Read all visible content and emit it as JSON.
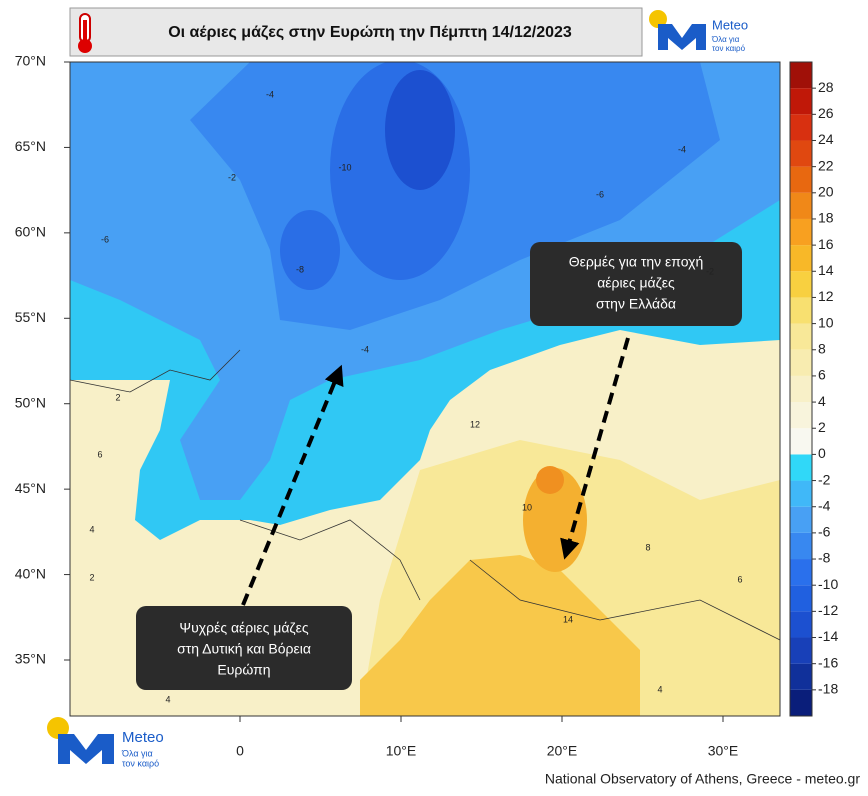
{
  "header": {
    "title": "Οι αέριες μάζες στην Ευρώπη την  Πέμπτη 14/12/2023"
  },
  "logo": {
    "name": "Meteo",
    "tagline": [
      "Όλα για",
      "τον καιρό"
    ]
  },
  "map": {
    "lat_ticks": [
      {
        "value": 70,
        "label": "70°N"
      },
      {
        "value": 65,
        "label": "65°N"
      },
      {
        "value": 60,
        "label": "60°N"
      },
      {
        "value": 55,
        "label": "55°N"
      },
      {
        "value": 50,
        "label": "50°N"
      },
      {
        "value": 45,
        "label": "45°N"
      },
      {
        "value": 40,
        "label": "40°N"
      },
      {
        "value": 35,
        "label": "35°N"
      }
    ],
    "lon_ticks": [
      0,
      {
        "value": 10,
        "label": "10°E"
      },
      {
        "value": 20,
        "label": "20°E"
      },
      {
        "value": 30,
        "label": "30°E"
      }
    ],
    "contour_labels": [
      -2,
      -4,
      -6,
      -8,
      -10,
      -6,
      -4,
      -2,
      -4,
      2,
      6,
      4,
      2,
      4,
      10,
      14,
      8,
      6,
      12,
      4
    ]
  },
  "colorbar": {
    "lim": [
      -20,
      30
    ],
    "ticks": [
      -18,
      -16,
      -14,
      -12,
      -10,
      -8,
      -6,
      -4,
      -2,
      0,
      2,
      4,
      6,
      8,
      10,
      12,
      14,
      16,
      18,
      20,
      22,
      24,
      26,
      28
    ],
    "colors": [
      "#0a1e7a",
      "#10309a",
      "#1840b8",
      "#1c50d0",
      "#2060e0",
      "#2a70ec",
      "#3888f0",
      "#48a0f4",
      "#40b8f8",
      "#30d8f8",
      "#f8f8f0",
      "#f8f4dc",
      "#f8f0c8",
      "#f8ecb0",
      "#f8e898",
      "#f8e070",
      "#f8d040",
      "#f8b828",
      "#f8a020",
      "#f08818",
      "#e86810",
      "#e04810",
      "#d83010",
      "#c01808",
      "#a01008"
    ]
  },
  "annotations": [
    {
      "lines": [
        "Θερμές για την εποχή",
        "αέριες μάζες",
        "στην Ελλάδα"
      ]
    },
    {
      "lines": [
        "Ψυχρές αέριες μάζες",
        "στη Δυτική και Βόρεια",
        "Ευρώπη"
      ]
    }
  ],
  "footer": "National Observatory of Athens, Greece - meteo.gr"
}
